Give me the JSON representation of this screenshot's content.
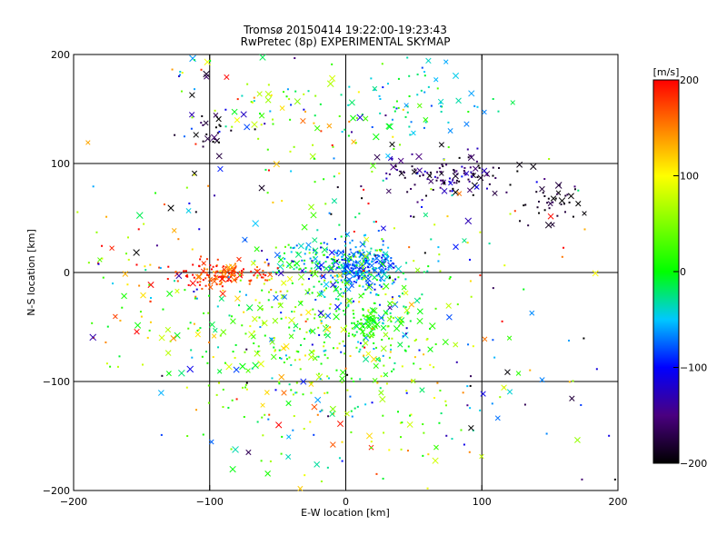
{
  "chart_data": {
    "type": "scatter",
    "title": "Tromsø 20150414 19:22:00-19:23:43",
    "subtitle": "RwPretec (8p) EXPERIMENTAL SKYMAP",
    "xlabel": "E-W location [km]",
    "ylabel": "N-S location [km]",
    "xlim": [
      -200,
      200
    ],
    "ylim": [
      -200,
      200
    ],
    "x_ticks": [
      -200,
      -100,
      0,
      100,
      200
    ],
    "y_ticks": [
      -200,
      -100,
      0,
      100,
      200
    ],
    "grid_lines_x": [
      -100,
      0,
      100
    ],
    "grid_lines_y": [
      -100,
      0,
      100
    ],
    "markers": [
      "dot",
      "cross"
    ],
    "colorbar": {
      "label": "[m/s]",
      "min": -200,
      "max": 200,
      "ticks": [
        200,
        100,
        0,
        -100,
        -200
      ],
      "stops": [
        {
          "v": -200,
          "color": "#000000"
        },
        {
          "v": -150,
          "color": "#4a0080"
        },
        {
          "v": -100,
          "color": "#0000ff"
        },
        {
          "v": -50,
          "color": "#00c8ff"
        },
        {
          "v": 0,
          "color": "#00ff00"
        },
        {
          "v": 100,
          "color": "#ffff00"
        },
        {
          "v": 150,
          "color": "#ff8000"
        },
        {
          "v": 200,
          "color": "#ff0000"
        }
      ]
    },
    "clusters": [
      {
        "cx": 10,
        "cy": 5,
        "sx": 14,
        "sy": 12,
        "n": 260,
        "vmean": -70,
        "vsd": 25
      },
      {
        "cx": -35,
        "cy": 10,
        "sx": 18,
        "sy": 10,
        "n": 90,
        "vmean": -30,
        "vsd": 60
      },
      {
        "cx": -90,
        "cy": -2,
        "sx": 18,
        "sy": 6,
        "n": 140,
        "vmean": 180,
        "vsd": 25
      },
      {
        "cx": -50,
        "cy": -50,
        "sx": 40,
        "sy": 35,
        "n": 220,
        "vmean": 20,
        "vsd": 60
      },
      {
        "cx": 20,
        "cy": -35,
        "sx": 25,
        "sy": 30,
        "n": 180,
        "vmean": 0,
        "vsd": 40
      },
      {
        "cx": 15,
        "cy": -50,
        "sx": 6,
        "sy": 6,
        "n": 50,
        "vmean": 10,
        "vsd": 10
      },
      {
        "cx": 75,
        "cy": 90,
        "sx": 25,
        "sy": 10,
        "n": 120,
        "vmean": -160,
        "vsd": 30
      },
      {
        "cx": 150,
        "cy": 65,
        "sx": 12,
        "sy": 10,
        "n": 40,
        "vmean": -190,
        "vsd": 15
      },
      {
        "cx": 50,
        "cy": 160,
        "sx": 25,
        "sy": 20,
        "n": 70,
        "vmean": -40,
        "vsd": 30
      },
      {
        "cx": -40,
        "cy": 140,
        "sx": 35,
        "sy": 25,
        "n": 80,
        "vmean": 50,
        "vsd": 80
      },
      {
        "cx": -100,
        "cy": 125,
        "sx": 10,
        "sy": 10,
        "n": 25,
        "vmean": -190,
        "vsd": 15
      },
      {
        "cx": -110,
        "cy": 185,
        "sx": 10,
        "sy": 10,
        "n": 12,
        "vmean": 0,
        "vsd": 150
      },
      {
        "cx": 0,
        "cy": -120,
        "sx": 55,
        "sy": 35,
        "n": 160,
        "vmean": 40,
        "vsd": 70
      },
      {
        "cx": 0,
        "cy": 40,
        "sx": 100,
        "sy": 80,
        "n": 180,
        "vmean": 0,
        "vsd": 130
      },
      {
        "cx": -150,
        "cy": 0,
        "sx": 25,
        "sy": 40,
        "n": 60,
        "vmean": 80,
        "vsd": 90
      },
      {
        "cx": 120,
        "cy": -100,
        "sx": 40,
        "sy": 50,
        "n": 40,
        "vmean": -80,
        "vsd": 100
      }
    ]
  }
}
